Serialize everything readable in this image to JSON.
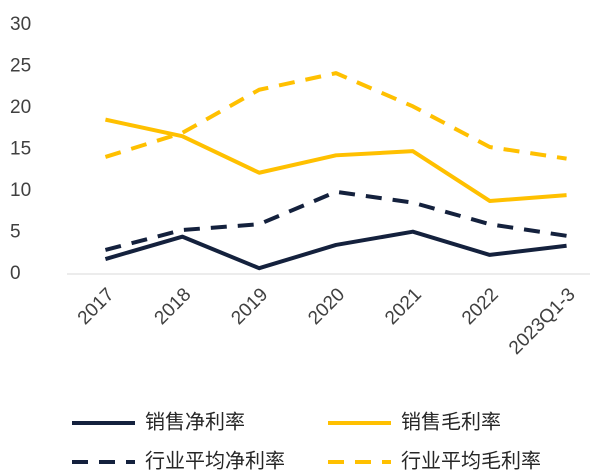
{
  "chart_data": {
    "type": "line",
    "categories": [
      "2017",
      "2018",
      "2019",
      "2020",
      "2021",
      "2022",
      "2023Q1-3"
    ],
    "series": [
      {
        "name": "销售净利率",
        "color": "#14213d",
        "dash": false,
        "values": [
          1.8,
          4.5,
          0.7,
          3.5,
          5.1,
          2.3,
          3.4
        ]
      },
      {
        "name": "销售毛利率",
        "color": "#ffc000",
        "dash": false,
        "values": [
          18.6,
          16.6,
          12.2,
          14.3,
          14.8,
          8.8,
          9.5
        ]
      },
      {
        "name": "行业平均净利率",
        "color": "#14213d",
        "dash": true,
        "values": [
          2.9,
          5.3,
          6.0,
          9.9,
          8.6,
          6.0,
          4.6
        ]
      },
      {
        "name": "行业平均毛利率",
        "color": "#ffc000",
        "dash": true,
        "values": [
          14.1,
          17.0,
          22.2,
          24.2,
          20.2,
          15.3,
          13.9
        ]
      }
    ],
    "ylim": [
      0,
      30
    ],
    "yticks": [
      0,
      5,
      10,
      15,
      20,
      25,
      30
    ],
    "grid": false
  }
}
